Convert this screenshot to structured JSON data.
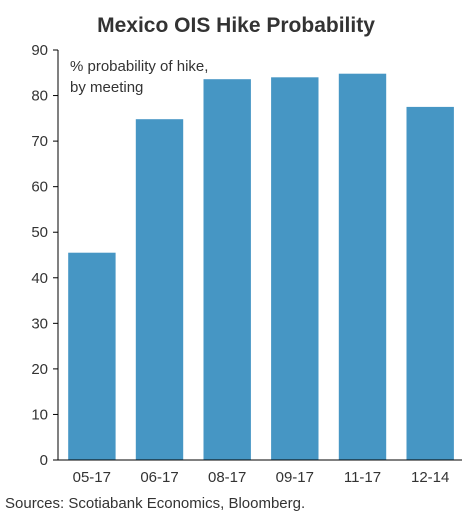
{
  "chart_data": {
    "type": "bar",
    "title": "Mexico OIS Hike Probability",
    "annotation": [
      "% probability of hike,",
      "by meeting"
    ],
    "categories": [
      "05-17",
      "06-17",
      "08-17",
      "09-17",
      "11-17",
      "12-14"
    ],
    "values": [
      45.5,
      74.8,
      83.6,
      84.0,
      84.8,
      77.5
    ],
    "ylim": [
      0,
      90
    ],
    "yticks": [
      0,
      10,
      20,
      30,
      40,
      50,
      60,
      70,
      80,
      90
    ],
    "bar_color": "#4696c4",
    "grid": false,
    "legend": "none",
    "source": "Sources: Scotiabank Economics, Bloomberg."
  }
}
